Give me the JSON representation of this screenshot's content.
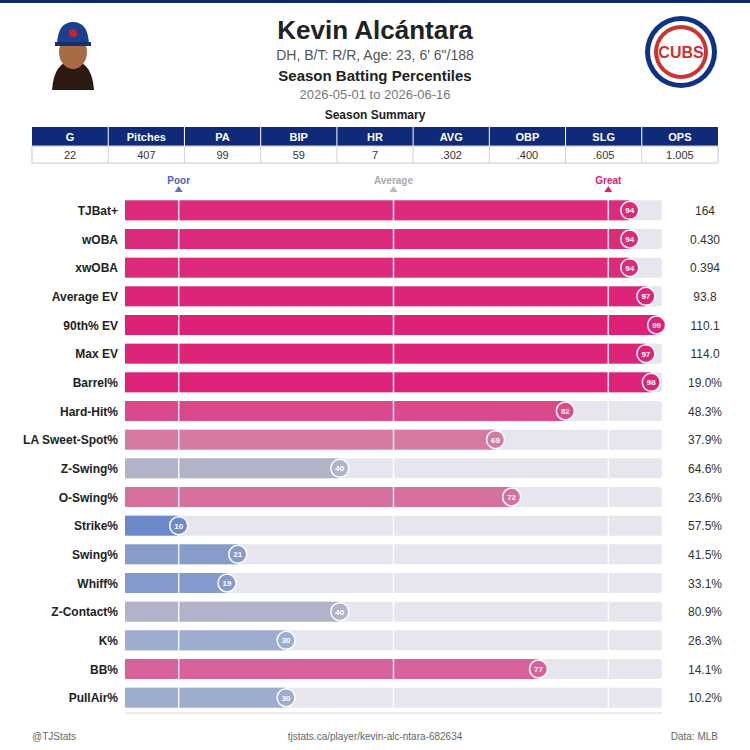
{
  "header": {
    "name": "Kevin Alcántara",
    "subtitle": "DH, B/T: R/R, Age: 23, 6' 6\"/188",
    "title": "Season Batting Percentiles",
    "dates": "2026-05-01 to 2026-06-16",
    "logo_text": "CUBS"
  },
  "summary": {
    "title": "Season Summary",
    "columns": [
      "G",
      "Pitches",
      "PA",
      "BIP",
      "HR",
      "AVG",
      "OBP",
      "SLG",
      "OPS"
    ],
    "rows": [
      [
        "22",
        "407",
        "99",
        "59",
        "7",
        ".302",
        ".400",
        ".605",
        "1.005"
      ]
    ]
  },
  "chart_data": {
    "type": "bar",
    "orientation": "horizontal",
    "categories": [
      "TJBat+",
      "wOBA",
      "xwOBA",
      "Average EV",
      "90th% EV",
      "Max EV",
      "Barrel%",
      "Hard-Hit%",
      "LA Sweet-Spot%",
      "Z-Swing%",
      "O-Swing%",
      "Strike%",
      "Swing%",
      "Whiff%",
      "Z-Contact%",
      "K%",
      "BB%",
      "PullAir%"
    ],
    "values": [
      94,
      94,
      94,
      97,
      99,
      97,
      98,
      82,
      69,
      40,
      72,
      10,
      21,
      19,
      40,
      30,
      77,
      30
    ],
    "colors": [
      "#dd2a7b",
      "#dd2a7b",
      "#dd2a7b",
      "#de2479",
      "#df2077",
      "#de2479",
      "#de2278",
      "#d9498b",
      "#d57aa3",
      "#b1b4c9",
      "#d6709e",
      "#6d89cc",
      "#889ccc",
      "#859acc",
      "#b1b4c9",
      "#9daccf",
      "#d76198",
      "#9daccf"
    ],
    "stat_values": [
      "164",
      "0.430",
      "0.394",
      "93.8",
      "110.1",
      "114.0",
      "19.0%",
      "48.3%",
      "37.9%",
      "64.6%",
      "23.6%",
      "57.5%",
      "41.5%",
      "33.1%",
      "80.9%",
      "26.3%",
      "14.1%",
      "10.2%"
    ],
    "xlim": [
      0,
      100
    ],
    "xticks": [
      {
        "value": 10,
        "label": "Poor"
      },
      {
        "value": 50,
        "label": "Average"
      },
      {
        "value": 90,
        "label": "Great"
      }
    ],
    "data_labels": true,
    "grid": true
  },
  "footer": {
    "left": "@TJStats",
    "center": "tjstats.ca/player/kevin-alc-ntara-682634",
    "right": "Data: MLB"
  }
}
